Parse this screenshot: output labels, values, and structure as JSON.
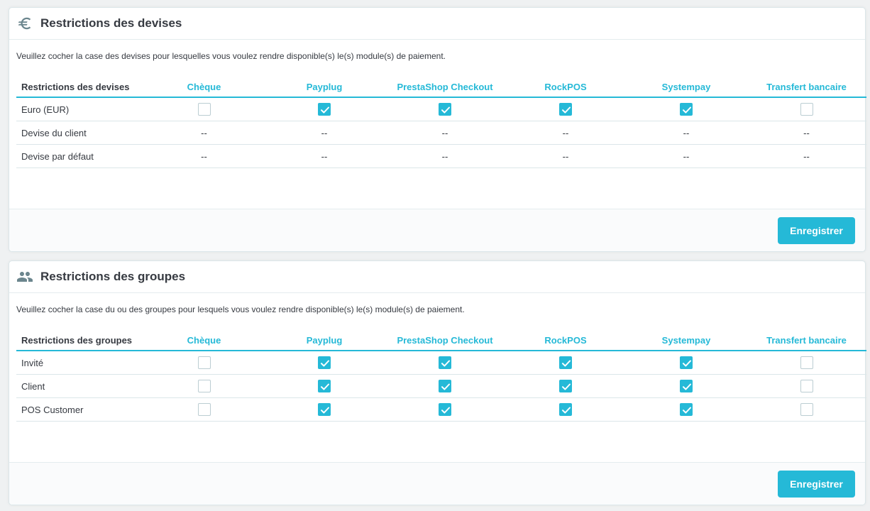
{
  "currencies": {
    "title": "Restrictions des devises",
    "description": "Veuillez cocher la case des devises pour lesquelles vous voulez rendre disponible(s) le(s) module(s) de paiement.",
    "table_header": "Restrictions des devises",
    "columns": [
      "Chèque",
      "Payplug",
      "PrestaShop Checkout",
      "RockPOS",
      "Systempay",
      "Transfert bancaire"
    ],
    "rows": [
      {
        "label": "Euro (EUR)",
        "cells": [
          false,
          true,
          true,
          true,
          true,
          false
        ]
      },
      {
        "label": "Devise du client",
        "cells": [
          "--",
          "--",
          "--",
          "--",
          "--",
          "--"
        ]
      },
      {
        "label": "Devise par défaut",
        "cells": [
          "--",
          "--",
          "--",
          "--",
          "--",
          "--"
        ]
      }
    ],
    "save_label": "Enregistrer"
  },
  "groups": {
    "title": "Restrictions des groupes",
    "description": "Veuillez cocher la case du ou des groupes pour lesquels vous voulez rendre disponible(s) le(s) module(s) de paiement.",
    "table_header": "Restrictions des groupes",
    "columns": [
      "Chèque",
      "Payplug",
      "PrestaShop Checkout",
      "RockPOS",
      "Systempay",
      "Transfert bancaire"
    ],
    "rows": [
      {
        "label": "Invité",
        "cells": [
          false,
          true,
          true,
          true,
          true,
          false
        ]
      },
      {
        "label": "Client",
        "cells": [
          false,
          true,
          true,
          true,
          true,
          false
        ]
      },
      {
        "label": "POS Customer",
        "cells": [
          false,
          true,
          true,
          true,
          true,
          false
        ]
      }
    ],
    "save_label": "Enregistrer"
  },
  "icons": {
    "currencies": "euro-icon",
    "groups": "people-icon"
  },
  "colors": {
    "accent": "#25b9d7",
    "text": "#363a41",
    "border": "#dbe6e9"
  }
}
